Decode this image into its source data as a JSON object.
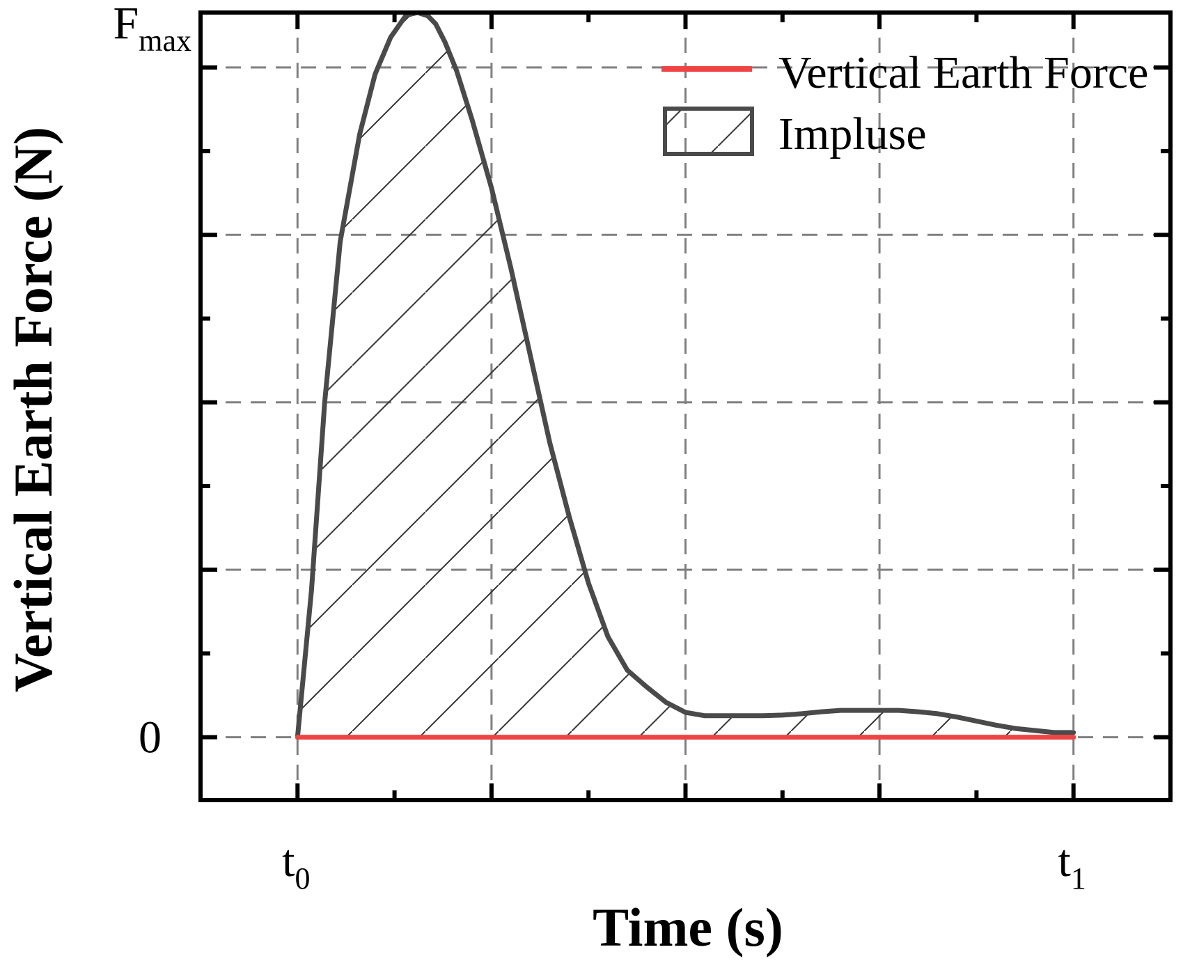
{
  "chart_data": {
    "type": "area",
    "xlabel": "Time (s)",
    "ylabel": "Vertical Earth Force (N)",
    "x_ticks": [
      {
        "base": "t",
        "sub": "0",
        "at": 0
      },
      {
        "base": "t",
        "sub": "1",
        "at": 1
      }
    ],
    "y_ticks": [
      {
        "base": "0",
        "sub": "",
        "at": 0
      },
      {
        "base": "F",
        "sub": "max",
        "at": 1
      }
    ],
    "xlim": [
      -0.125,
      1.125
    ],
    "ylim": [
      -0.094,
      1.082
    ],
    "x_gridlines": [
      0,
      0.25,
      0.5,
      0.75,
      1
    ],
    "y_gridlines": [
      0,
      0.25,
      0.5,
      0.75,
      1
    ],
    "grid": true,
    "legend_position": "top-right",
    "series": [
      {
        "name": "Vertical Earth Force",
        "color": "#f04444",
        "style": "line",
        "x": [
          0,
          1
        ],
        "y": [
          0,
          0
        ]
      },
      {
        "name": "Impluse",
        "color": "#4a4a4a",
        "style": "hatched-area",
        "x": [
          0,
          0.018,
          0.035,
          0.055,
          0.08,
          0.1,
          0.12,
          0.14,
          0.155,
          0.168,
          0.178,
          0.19,
          0.205,
          0.225,
          0.25,
          0.275,
          0.3,
          0.325,
          0.35,
          0.375,
          0.4,
          0.425,
          0.45,
          0.475,
          0.5,
          0.525,
          0.55,
          0.575,
          0.6,
          0.625,
          0.65,
          0.675,
          0.7,
          0.725,
          0.75,
          0.775,
          0.8,
          0.825,
          0.85,
          0.875,
          0.9,
          0.925,
          0.95,
          0.975,
          1
        ],
        "y": [
          0,
          0.22,
          0.5,
          0.74,
          0.9,
          0.99,
          1.045,
          1.078,
          1.082,
          1.077,
          1.065,
          1.038,
          0.995,
          0.922,
          0.82,
          0.7,
          0.57,
          0.44,
          0.33,
          0.23,
          0.15,
          0.1,
          0.075,
          0.052,
          0.037,
          0.032,
          0.032,
          0.032,
          0.032,
          0.033,
          0.035,
          0.038,
          0.04,
          0.04,
          0.04,
          0.04,
          0.038,
          0.035,
          0.03,
          0.024,
          0.018,
          0.013,
          0.01,
          0.007,
          0.007
        ]
      }
    ]
  }
}
